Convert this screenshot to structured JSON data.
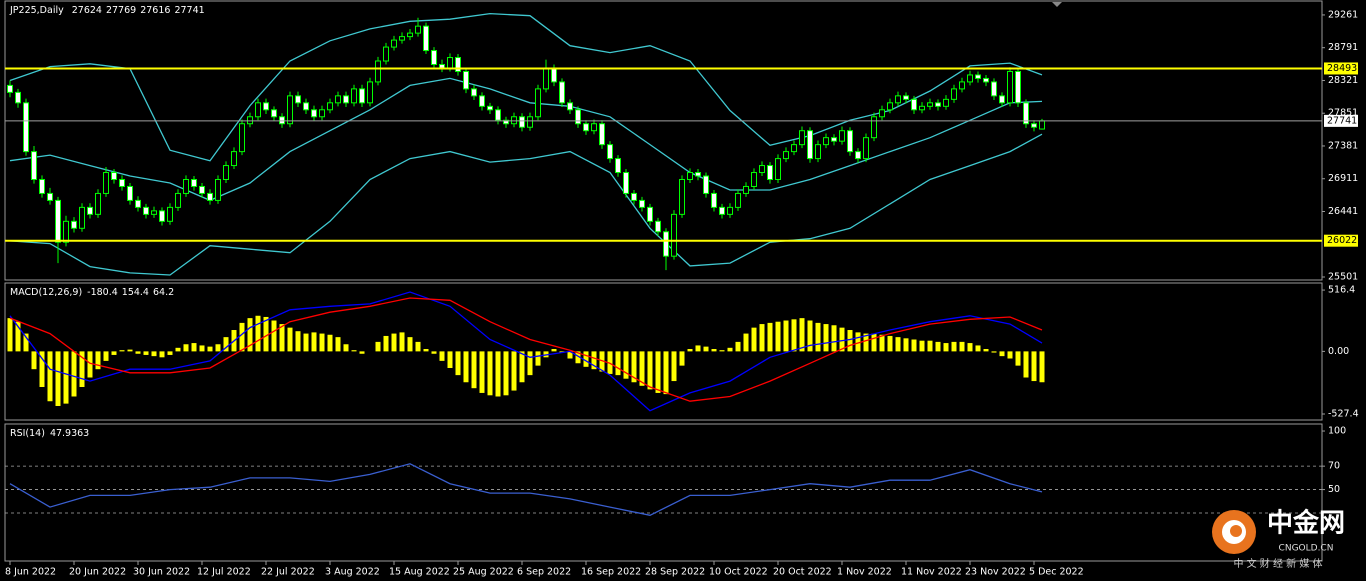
{
  "chart_data": [
    {
      "type": "candlestick",
      "title": "JP225,Daily",
      "ohlc_header": [
        27624,
        27769,
        27616,
        27741
      ],
      "open": [
        28250,
        28150,
        28000,
        27300,
        26900,
        26700,
        26600,
        26000,
        26300,
        26200,
        26500,
        26400,
        26700,
        27000,
        26900,
        26800,
        26600,
        26500,
        26400,
        26450,
        26300,
        26500,
        26700,
        26900,
        26800,
        26700,
        26600,
        26900,
        27100,
        27300,
        27700,
        27800,
        28000,
        27900,
        27800,
        27700,
        28100,
        28000,
        27900,
        27800,
        27900,
        28000,
        28100,
        28000,
        28200,
        28000,
        28300,
        28600,
        28800,
        28900,
        28950,
        29000,
        29100,
        28750,
        28550,
        28500,
        28650,
        28450,
        28200,
        28100,
        27950,
        27900,
        27750,
        27700,
        27800,
        27650,
        27800,
        28200,
        28500,
        28300,
        28000,
        27900,
        27700,
        27600,
        27700,
        27400,
        27200,
        27000,
        26700,
        26600,
        26500,
        26300,
        26150,
        25800,
        26400,
        26900,
        27000,
        26950,
        26700,
        26500,
        26400,
        26500,
        26700,
        26800,
        27000,
        27100,
        26900,
        27200,
        27300,
        27400,
        27600,
        27200,
        27400,
        27500,
        27450,
        27600,
        27300,
        27200,
        27500,
        27800,
        27900,
        28000,
        28100,
        28050,
        27900,
        27950,
        28000,
        27950,
        28050,
        28200,
        28300,
        28400,
        28350,
        28300,
        28100,
        28000,
        28450,
        28000,
        27700,
        27624
      ],
      "high": [
        28320,
        28200,
        28060,
        27380,
        26960,
        26780,
        26650,
        26380,
        26360,
        26560,
        26560,
        26760,
        27080,
        27050,
        26960,
        26850,
        26660,
        26550,
        26510,
        26500,
        26560,
        26760,
        26960,
        26950,
        26850,
        26760,
        26960,
        27160,
        27360,
        27760,
        27860,
        28060,
        28060,
        27950,
        27850,
        28160,
        28160,
        28060,
        27960,
        27960,
        28060,
        28160,
        28160,
        28260,
        28260,
        28360,
        28660,
        28860,
        28960,
        29010,
        29060,
        29220,
        29150,
        28800,
        28620,
        28710,
        28700,
        28500,
        28260,
        28150,
        28000,
        27950,
        27800,
        27860,
        27850,
        27860,
        28260,
        28620,
        28550,
        28350,
        28050,
        27950,
        27750,
        27760,
        27750,
        27450,
        27250,
        27050,
        26750,
        26650,
        26550,
        26350,
        26200,
        26460,
        26960,
        27060,
        27050,
        27000,
        26750,
        26550,
        26560,
        26760,
        26860,
        27060,
        27160,
        27150,
        27260,
        27360,
        27460,
        27660,
        27650,
        27460,
        27560,
        27550,
        27660,
        27650,
        27350,
        27560,
        27860,
        27960,
        28060,
        28160,
        28150,
        28100,
        28010,
        28060,
        28050,
        28110,
        28260,
        28360,
        28460,
        28450,
        28400,
        28350,
        28150,
        28510,
        28500,
        28050,
        27750,
        27769
      ],
      "low": [
        28080,
        27930,
        27240,
        26840,
        26640,
        26540,
        25700,
        25940,
        26140,
        26150,
        26340,
        26350,
        26650,
        26840,
        26740,
        26540,
        26440,
        26340,
        26350,
        26240,
        26250,
        26450,
        26650,
        26740,
        26640,
        26540,
        26550,
        26850,
        27050,
        27250,
        27650,
        27750,
        27840,
        27740,
        27640,
        27650,
        27940,
        27840,
        27740,
        27750,
        27850,
        27950,
        27940,
        27950,
        27940,
        27950,
        28250,
        28550,
        28750,
        28850,
        28900,
        28950,
        28700,
        28500,
        28440,
        28450,
        28390,
        28140,
        28040,
        27890,
        27840,
        27690,
        27640,
        27650,
        27590,
        27600,
        27750,
        28150,
        28240,
        27940,
        27840,
        27640,
        27540,
        27550,
        27340,
        27140,
        26940,
        26640,
        26540,
        26440,
        26240,
        26090,
        25600,
        25750,
        26350,
        26850,
        26890,
        26640,
        26440,
        26340,
        26350,
        26450,
        26650,
        26750,
        26950,
        26840,
        26850,
        27150,
        27250,
        27350,
        27140,
        27150,
        27350,
        27390,
        27400,
        27240,
        27140,
        27150,
        27450,
        27750,
        27850,
        27950,
        27990,
        27840,
        27850,
        27900,
        27890,
        27900,
        28000,
        28150,
        28250,
        28290,
        28240,
        28040,
        27940,
        27950,
        27940,
        27640,
        27590,
        27616
      ],
      "close": [
        28150,
        28000,
        27300,
        26900,
        26700,
        26600,
        26000,
        26300,
        26200,
        26500,
        26400,
        26700,
        27000,
        26900,
        26800,
        26600,
        26500,
        26400,
        26450,
        26300,
        26500,
        26700,
        26900,
        26800,
        26700,
        26600,
        26900,
        27100,
        27300,
        27700,
        27800,
        28000,
        27900,
        27800,
        27700,
        28100,
        28000,
        27900,
        27800,
        27900,
        28000,
        28100,
        28000,
        28200,
        28000,
        28300,
        28600,
        28800,
        28900,
        28950,
        29000,
        29100,
        28750,
        28550,
        28500,
        28650,
        28450,
        28200,
        28100,
        27950,
        27900,
        27750,
        27700,
        27800,
        27650,
        27800,
        28200,
        28500,
        28300,
        28000,
        27900,
        27700,
        27600,
        27700,
        27400,
        27200,
        27000,
        26700,
        26600,
        26500,
        26300,
        26150,
        25800,
        26400,
        26900,
        27000,
        26950,
        26700,
        26500,
        26400,
        26500,
        26700,
        26800,
        27000,
        27100,
        26900,
        27200,
        27300,
        27400,
        27600,
        27200,
        27400,
        27500,
        27450,
        27600,
        27300,
        27200,
        27500,
        27800,
        27900,
        28000,
        28100,
        28050,
        27900,
        27950,
        28000,
        27950,
        28050,
        28200,
        28300,
        28400,
        28350,
        28300,
        28100,
        28000,
        28450,
        28000,
        27700,
        27650,
        27741
      ],
      "up_color": "#00ff00",
      "down_color": "#ffffff",
      "series": [
        {
          "color": "#40c8d0",
          "x": [
            0,
            5,
            10,
            15,
            20,
            25,
            30,
            35,
            40,
            45,
            50,
            55,
            60,
            65,
            70,
            75,
            80,
            85,
            90,
            95,
            100,
            105,
            110,
            115,
            120,
            125,
            129
          ],
          "values": [
            28320,
            28520,
            28560,
            28490,
            27320,
            27170,
            27960,
            28600,
            28890,
            29060,
            29170,
            29200,
            29280,
            29250,
            28820,
            28720,
            28820,
            28600,
            27890,
            27390,
            27530,
            27750,
            27890,
            28170,
            28530,
            28570,
            28400
          ]
        },
        {
          "color": "#40c8d0",
          "x": [
            0,
            5,
            10,
            15,
            20,
            25,
            30,
            35,
            40,
            45,
            50,
            55,
            60,
            65,
            70,
            75,
            80,
            85,
            90,
            95,
            100,
            105,
            110,
            115,
            120,
            125,
            129
          ],
          "values": [
            27170,
            27250,
            27100,
            26950,
            26850,
            26600,
            26850,
            27300,
            27600,
            27900,
            28250,
            28350,
            28200,
            28000,
            27950,
            27800,
            27400,
            27000,
            26750,
            26750,
            26900,
            27100,
            27300,
            27500,
            27750,
            28000,
            28020
          ]
        },
        {
          "color": "#40c8d0",
          "x": [
            0,
            5,
            10,
            15,
            20,
            25,
            30,
            35,
            40,
            45,
            50,
            55,
            60,
            65,
            70,
            75,
            80,
            85,
            90,
            95,
            100,
            105,
            110,
            115,
            120,
            125,
            129
          ],
          "values": [
            26020,
            25980,
            25650,
            25560,
            25530,
            25950,
            25900,
            25850,
            26300,
            26900,
            27200,
            27300,
            27150,
            27200,
            27300,
            27000,
            26200,
            25660,
            25700,
            26000,
            26050,
            26200,
            26550,
            26900,
            27100,
            27300,
            27550
          ]
        }
      ],
      "price_lines": [
        {
          "value": 28493,
          "color": "#ffff00"
        },
        {
          "value": 27741,
          "color": "#a0a0a0"
        },
        {
          "value": 26022,
          "color": "#ffff00"
        }
      ],
      "xlim": [
        -0.625,
        164
      ],
      "ylim": [
        25458,
        29461
      ],
      "yticks": [
        29261,
        28791,
        28321,
        27851,
        27381,
        26911,
        26441,
        25501
      ]
    },
    {
      "type": "macd",
      "title": "MACD(12,26,9)",
      "header_values": [
        -180.4,
        154.4,
        64.2
      ],
      "histogram": [
        280,
        250,
        150,
        -150,
        -300,
        -420,
        -460,
        -440,
        -380,
        -300,
        -220,
        -150,
        -80,
        -30,
        10,
        15,
        -20,
        -30,
        -40,
        -50,
        -30,
        30,
        60,
        70,
        50,
        40,
        60,
        120,
        180,
        240,
        280,
        300,
        290,
        260,
        230,
        200,
        170,
        150,
        160,
        150,
        140,
        120,
        60,
        10,
        -20,
        0,
        80,
        130,
        150,
        160,
        120,
        80,
        20,
        -20,
        -80,
        -140,
        -200,
        -260,
        -310,
        -350,
        -370,
        -380,
        -370,
        -330,
        -260,
        -200,
        -120,
        -50,
        20,
        -10,
        -60,
        -100,
        -130,
        -150,
        -170,
        -190,
        -200,
        -230,
        -260,
        -290,
        -320,
        -350,
        -360,
        -250,
        -120,
        20,
        50,
        40,
        20,
        10,
        30,
        80,
        150,
        200,
        230,
        240,
        250,
        260,
        270,
        280,
        260,
        240,
        230,
        220,
        200,
        180,
        160,
        150,
        150,
        140,
        130,
        120,
        110,
        100,
        90,
        90,
        80,
        70,
        80,
        80,
        70,
        50,
        20,
        -10,
        -40,
        -60,
        -120,
        -220,
        -250,
        -260
      ],
      "histogram_color": "#ffff00",
      "series": [
        {
          "color": "#0000ff",
          "x": [
            0,
            5,
            10,
            15,
            20,
            25,
            30,
            35,
            40,
            45,
            50,
            55,
            60,
            65,
            70,
            75,
            80,
            85,
            90,
            95,
            100,
            105,
            110,
            115,
            120,
            125,
            129
          ],
          "values": [
            300,
            -150,
            -250,
            -150,
            -150,
            -80,
            200,
            350,
            380,
            400,
            500,
            380,
            100,
            -50,
            0,
            -200,
            -500,
            -350,
            -250,
            -50,
            50,
            100,
            180,
            250,
            300,
            230,
            70
          ]
        },
        {
          "color": "#ff0000",
          "x": [
            0,
            5,
            10,
            15,
            20,
            25,
            30,
            35,
            40,
            45,
            50,
            55,
            60,
            65,
            70,
            75,
            80,
            85,
            90,
            95,
            100,
            105,
            110,
            115,
            120,
            125,
            129
          ],
          "values": [
            280,
            150,
            -100,
            -180,
            -180,
            -140,
            50,
            250,
            330,
            380,
            450,
            430,
            250,
            100,
            10,
            -100,
            -300,
            -420,
            -380,
            -250,
            -100,
            50,
            150,
            230,
            270,
            290,
            180
          ]
        }
      ],
      "xlim": [
        -0.625,
        164
      ],
      "ylim": [
        -578,
        576
      ],
      "yticks": [
        516.4,
        {
          "value": 0,
          "label": "0.00"
        },
        -527.4
      ]
    },
    {
      "type": "line",
      "title": "RSI(14)",
      "header_values": [
        47.9363
      ],
      "series": [
        {
          "color": "#3a5fd0",
          "x": [
            0,
            5,
            10,
            15,
            20,
            25,
            30,
            35,
            40,
            45,
            50,
            55,
            60,
            65,
            70,
            75,
            80,
            85,
            90,
            95,
            100,
            105,
            110,
            115,
            120,
            125,
            129
          ],
          "values": [
            55,
            35,
            45,
            45,
            50,
            52,
            60,
            60,
            57,
            63,
            72,
            55,
            47,
            47,
            42,
            35,
            28,
            45,
            45,
            50,
            55,
            52,
            58,
            58,
            67,
            55,
            48
          ]
        }
      ],
      "levels": [
        70,
        50,
        30
      ],
      "xlim": [
        -0.625,
        164
      ],
      "ylim": [
        -11,
        106
      ],
      "yticks": [
        100,
        70,
        50
      ],
      "xticks": [
        {
          "value": 0,
          "label": "8 Jun 2022"
        },
        {
          "value": 8,
          "label": "20 Jun 2022"
        },
        {
          "value": 16,
          "label": "30 Jun 2022"
        },
        {
          "value": 24,
          "label": "12 Jul 2022"
        },
        {
          "value": 32,
          "label": "22 Jul 2022"
        },
        {
          "value": 40,
          "label": "3 Aug 2022"
        },
        {
          "value": 48,
          "label": "15 Aug 2022"
        },
        {
          "value": 56,
          "label": "25 Aug 2022"
        },
        {
          "value": 64,
          "label": "6 Sep 2022"
        },
        {
          "value": 72,
          "label": "16 Sep 2022"
        },
        {
          "value": 80,
          "label": "28 Sep 2022"
        },
        {
          "value": 88,
          "label": "10 Oct 2022"
        },
        {
          "value": 96,
          "label": "20 Oct 2022"
        },
        {
          "value": 104,
          "label": "1 Nov 2022"
        },
        {
          "value": 112,
          "label": "11 Nov 2022"
        },
        {
          "value": 120,
          "label": "23 Nov 2022"
        },
        {
          "value": 128,
          "label": "5 Dec 2022"
        }
      ]
    }
  ],
  "watermark": {
    "name": "中金网",
    "domain": "CNGOLD.CN",
    "tagline": "中 文 财 经 新 媒 体"
  }
}
